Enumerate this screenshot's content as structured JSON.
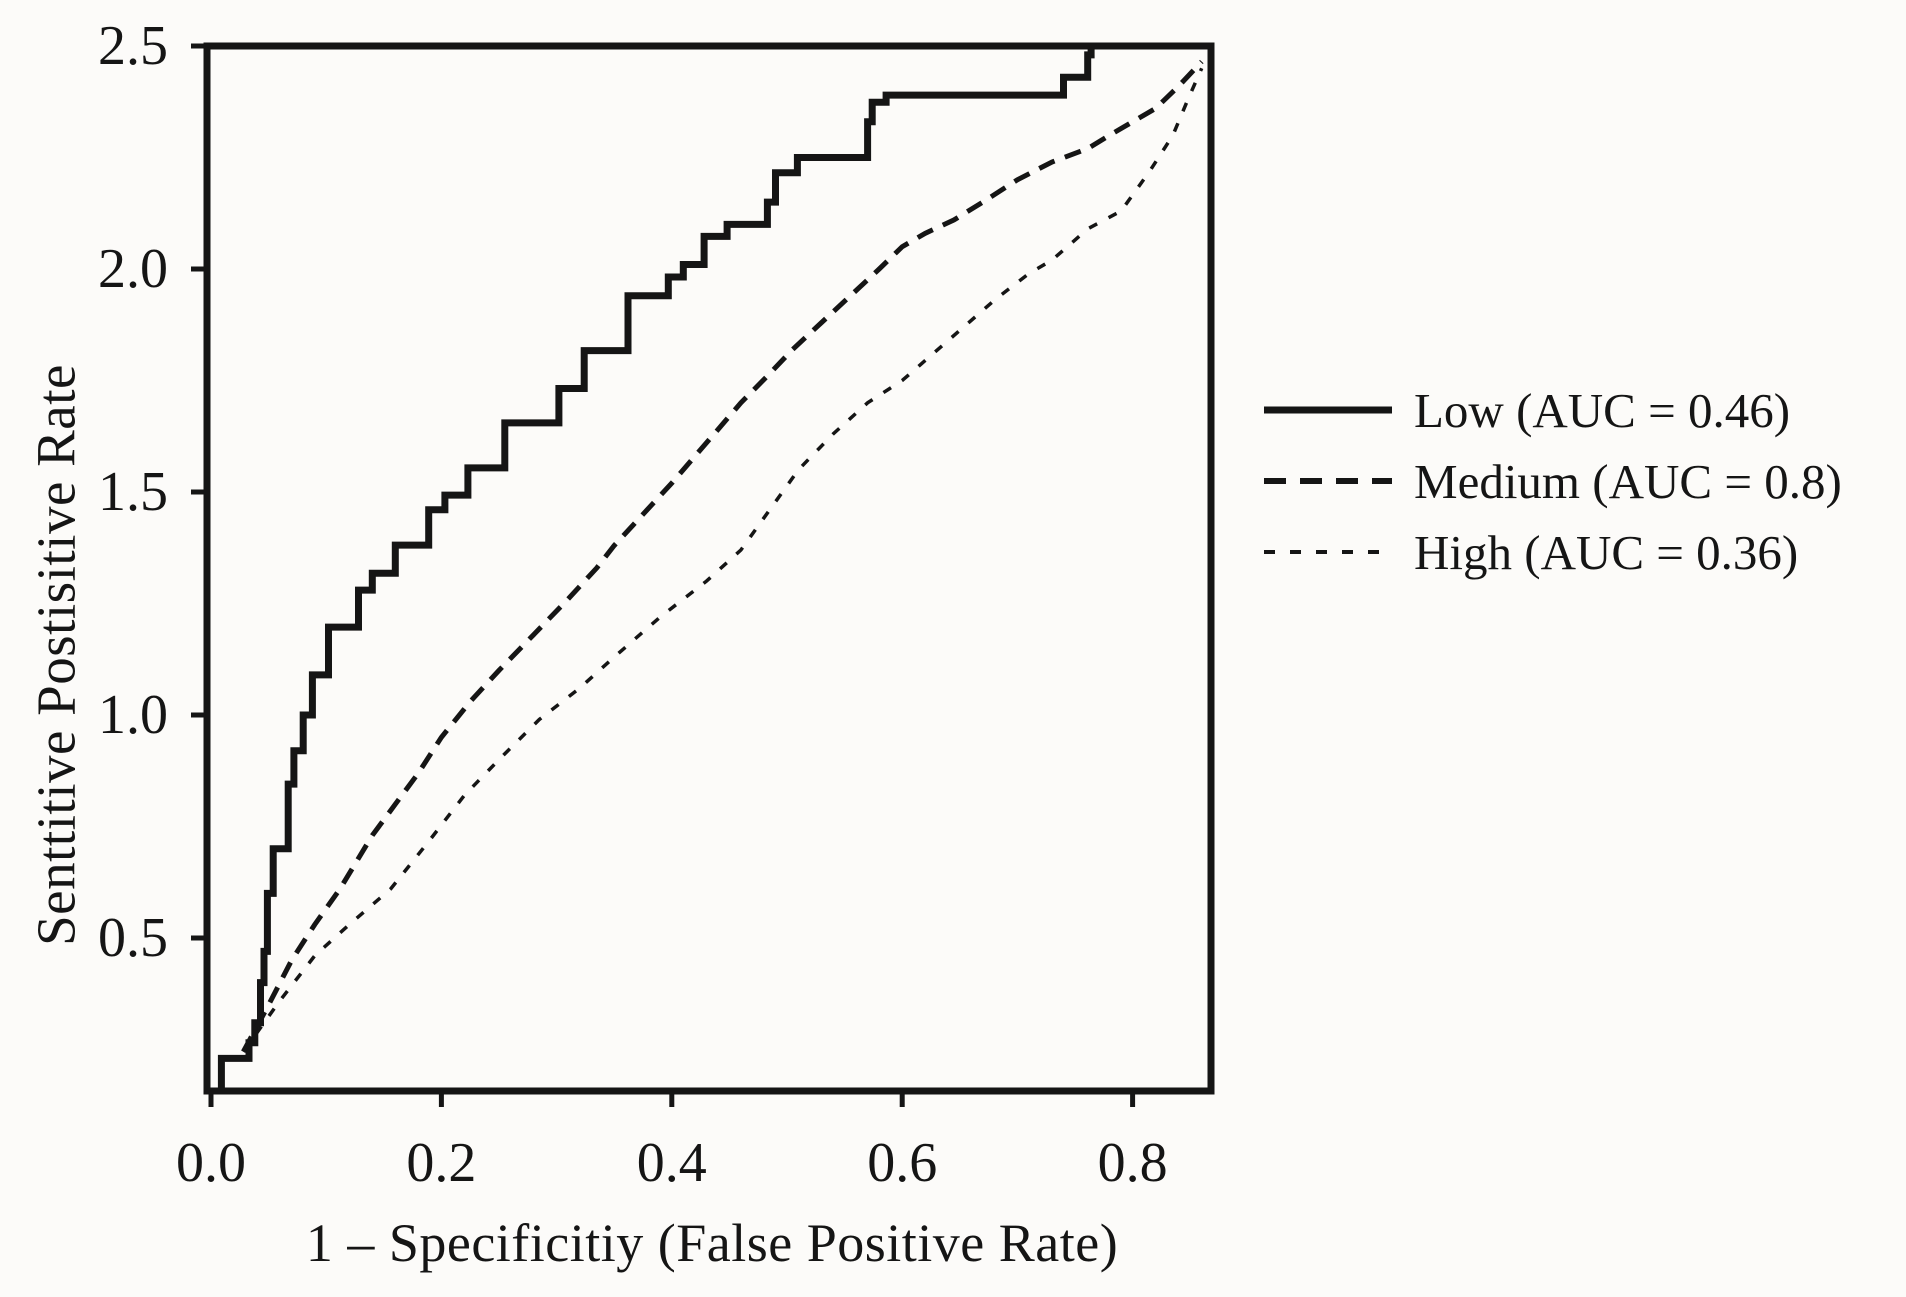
{
  "figure": {
    "background_color": "#fcfbf9",
    "ink_color": "#151515"
  },
  "chart_data": {
    "type": "line",
    "title": "",
    "xlabel": "1 – Specificitiy (False Positive Rate)",
    "ylabel": "Senttitive Postisitive Rate",
    "xlim": [
      0,
      0.868
    ],
    "ylim": [
      0.157,
      2.5
    ],
    "grid": false,
    "legend_position": "right-outside",
    "x_ticks": [
      {
        "value": 0.0,
        "label": "0.0"
      },
      {
        "value": 0.2,
        "label": "0.2"
      },
      {
        "value": 0.4,
        "label": "0.4"
      },
      {
        "value": 0.6,
        "label": "0.6"
      },
      {
        "value": 0.8,
        "label": "0.8"
      }
    ],
    "y_ticks": [
      {
        "value": 0.5,
        "label": "0.5"
      },
      {
        "value": 1.0,
        "label": "1.0"
      },
      {
        "value": 1.5,
        "label": "1.5"
      },
      {
        "value": 2.0,
        "label": "2.0"
      },
      {
        "value": 2.5,
        "label": "2.5"
      }
    ],
    "series": [
      {
        "name": "Low",
        "auc": 0.46,
        "legend_label": "Low (AUC = 0.46)",
        "line_style": "solid",
        "points": [
          [
            0.005,
            0.157
          ],
          [
            0.009,
            0.157
          ],
          [
            0.009,
            0.23
          ],
          [
            0.033,
            0.23
          ],
          [
            0.033,
            0.265
          ],
          [
            0.038,
            0.265
          ],
          [
            0.038,
            0.31
          ],
          [
            0.043,
            0.31
          ],
          [
            0.043,
            0.4
          ],
          [
            0.046,
            0.4
          ],
          [
            0.046,
            0.47
          ],
          [
            0.049,
            0.47
          ],
          [
            0.049,
            0.6
          ],
          [
            0.054,
            0.6
          ],
          [
            0.054,
            0.7
          ],
          [
            0.067,
            0.7
          ],
          [
            0.067,
            0.845
          ],
          [
            0.072,
            0.845
          ],
          [
            0.072,
            0.92
          ],
          [
            0.08,
            0.92
          ],
          [
            0.08,
            1.0
          ],
          [
            0.088,
            1.0
          ],
          [
            0.088,
            1.09
          ],
          [
            0.102,
            1.09
          ],
          [
            0.102,
            1.197
          ],
          [
            0.128,
            1.197
          ],
          [
            0.128,
            1.28
          ],
          [
            0.14,
            1.28
          ],
          [
            0.14,
            1.318
          ],
          [
            0.16,
            1.318
          ],
          [
            0.16,
            1.381
          ],
          [
            0.189,
            1.381
          ],
          [
            0.189,
            1.46
          ],
          [
            0.203,
            1.46
          ],
          [
            0.203,
            1.493
          ],
          [
            0.223,
            1.493
          ],
          [
            0.223,
            1.554
          ],
          [
            0.255,
            1.554
          ],
          [
            0.255,
            1.655
          ],
          [
            0.302,
            1.655
          ],
          [
            0.302,
            1.732
          ],
          [
            0.324,
            1.732
          ],
          [
            0.324,
            1.817
          ],
          [
            0.362,
            1.817
          ],
          [
            0.362,
            1.94
          ],
          [
            0.397,
            1.94
          ],
          [
            0.397,
            1.982
          ],
          [
            0.41,
            1.982
          ],
          [
            0.41,
            2.01
          ],
          [
            0.428,
            2.01
          ],
          [
            0.428,
            2.073
          ],
          [
            0.448,
            2.073
          ],
          [
            0.448,
            2.1
          ],
          [
            0.483,
            2.1
          ],
          [
            0.483,
            2.15
          ],
          [
            0.49,
            2.15
          ],
          [
            0.49,
            2.216
          ],
          [
            0.509,
            2.216
          ],
          [
            0.509,
            2.25
          ],
          [
            0.57,
            2.25
          ],
          [
            0.57,
            2.33
          ],
          [
            0.574,
            2.33
          ],
          [
            0.574,
            2.374
          ],
          [
            0.586,
            2.374
          ],
          [
            0.586,
            2.39
          ],
          [
            0.74,
            2.39
          ],
          [
            0.74,
            2.43
          ],
          [
            0.761,
            2.43
          ],
          [
            0.761,
            2.48
          ],
          [
            0.764,
            2.48
          ],
          [
            0.764,
            2.5
          ],
          [
            0.868,
            2.5
          ]
        ]
      },
      {
        "name": "Medium",
        "auc": 0.8,
        "legend_label": "Medium (AUC = 0.8)",
        "line_style": "dashed",
        "points": [
          [
            0.028,
            0.245
          ],
          [
            0.05,
            0.35
          ],
          [
            0.07,
            0.45
          ],
          [
            0.09,
            0.53
          ],
          [
            0.112,
            0.61
          ],
          [
            0.14,
            0.73
          ],
          [
            0.16,
            0.8
          ],
          [
            0.18,
            0.87
          ],
          [
            0.2,
            0.95
          ],
          [
            0.225,
            1.03
          ],
          [
            0.25,
            1.1
          ],
          [
            0.28,
            1.18
          ],
          [
            0.31,
            1.26
          ],
          [
            0.335,
            1.33
          ],
          [
            0.35,
            1.38
          ],
          [
            0.375,
            1.45
          ],
          [
            0.4,
            1.52
          ],
          [
            0.42,
            1.58
          ],
          [
            0.44,
            1.64
          ],
          [
            0.46,
            1.7
          ],
          [
            0.483,
            1.76
          ],
          [
            0.505,
            1.82
          ],
          [
            0.53,
            1.88
          ],
          [
            0.555,
            1.94
          ],
          [
            0.58,
            2.0
          ],
          [
            0.6,
            2.05
          ],
          [
            0.62,
            2.08
          ],
          [
            0.645,
            2.11
          ],
          [
            0.67,
            2.15
          ],
          [
            0.7,
            2.2
          ],
          [
            0.73,
            2.24
          ],
          [
            0.761,
            2.27
          ],
          [
            0.78,
            2.3
          ],
          [
            0.8,
            2.33
          ],
          [
            0.82,
            2.36
          ],
          [
            0.84,
            2.41
          ],
          [
            0.86,
            2.465
          ]
        ]
      },
      {
        "name": "High",
        "auc": 0.36,
        "legend_label": "High (AUC = 0.36)",
        "line_style": "fine-dashed",
        "points": [
          [
            0.028,
            0.245
          ],
          [
            0.06,
            0.36
          ],
          [
            0.09,
            0.46
          ],
          [
            0.12,
            0.53
          ],
          [
            0.156,
            0.61
          ],
          [
            0.19,
            0.72
          ],
          [
            0.22,
            0.82
          ],
          [
            0.25,
            0.9
          ],
          [
            0.285,
            0.99
          ],
          [
            0.32,
            1.06
          ],
          [
            0.35,
            1.13
          ],
          [
            0.39,
            1.22
          ],
          [
            0.43,
            1.3
          ],
          [
            0.46,
            1.37
          ],
          [
            0.485,
            1.46
          ],
          [
            0.51,
            1.55
          ],
          [
            0.54,
            1.63
          ],
          [
            0.57,
            1.7
          ],
          [
            0.6,
            1.75
          ],
          [
            0.64,
            1.84
          ],
          [
            0.68,
            1.93
          ],
          [
            0.71,
            1.99
          ],
          [
            0.73,
            2.02
          ],
          [
            0.761,
            2.09
          ],
          [
            0.79,
            2.13
          ],
          [
            0.815,
            2.22
          ],
          [
            0.835,
            2.3
          ],
          [
            0.848,
            2.38
          ],
          [
            0.86,
            2.45
          ]
        ]
      }
    ]
  }
}
